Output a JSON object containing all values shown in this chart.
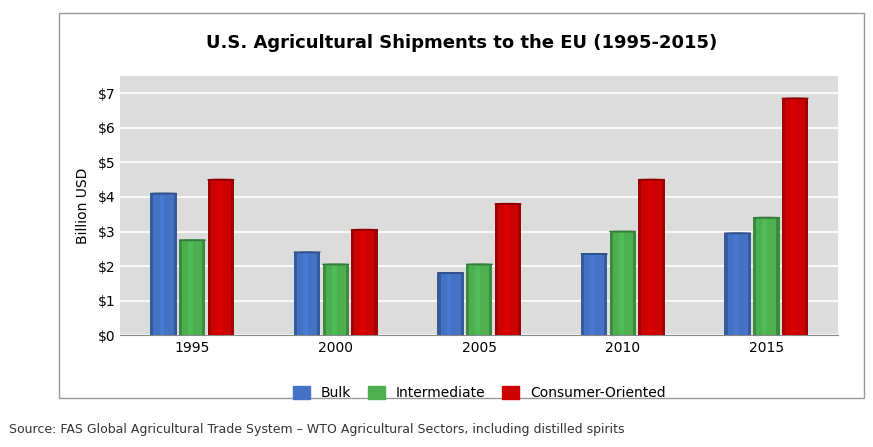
{
  "title": "U.S. Agricultural Shipments to the EU (1995-2015)",
  "ylabel": "Billion USD",
  "source_text": "Source: FAS Global Agricultural Trade System – WTO Agricultural Sectors, including distilled spirits",
  "years": [
    "1995",
    "2000",
    "2005",
    "2010",
    "2015"
  ],
  "bulk": [
    4.1,
    2.4,
    1.8,
    2.35,
    2.95
  ],
  "intermediate": [
    2.75,
    2.05,
    2.05,
    3.0,
    3.4
  ],
  "consumer": [
    4.5,
    3.05,
    3.8,
    4.5,
    6.85
  ],
  "bulk_color": "#4472C4",
  "intermediate_color": "#4CAF50",
  "consumer_color": "#CC0000",
  "plot_bg_color": "#DCDCDC",
  "panel_bg_color": "#FFFFFF",
  "ylim": [
    0,
    7.5
  ],
  "yticks": [
    0,
    1,
    2,
    3,
    4,
    5,
    6,
    7
  ],
  "ytick_labels": [
    "$0",
    "$1",
    "$2",
    "$3",
    "$4",
    "$5",
    "$6",
    "$7"
  ],
  "bar_width": 0.2,
  "legend_labels": [
    "Bulk",
    "Intermediate",
    "Consumer-Oriented"
  ],
  "title_fontsize": 13,
  "label_fontsize": 10,
  "tick_fontsize": 10,
  "source_fontsize": 9
}
